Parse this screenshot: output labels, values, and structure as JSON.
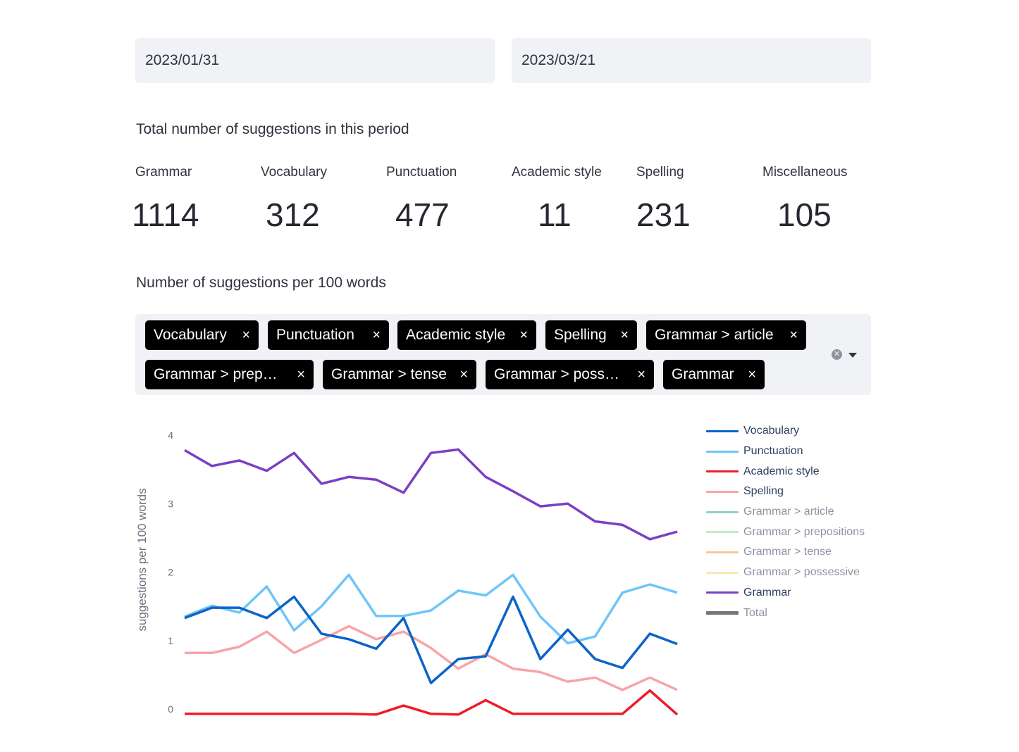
{
  "date_range": {
    "start": "2023/01/31",
    "end": "2023/03/21"
  },
  "totals": {
    "title": "Total number of suggestions in this period",
    "metrics": [
      {
        "label": "Grammar",
        "value": "1114"
      },
      {
        "label": "Vocabulary",
        "value": "312"
      },
      {
        "label": "Punctuation",
        "value": "477"
      },
      {
        "label": "Academic style",
        "value": "11"
      },
      {
        "label": "Spelling",
        "value": "231"
      },
      {
        "label": "Miscellaneous",
        "value": "105"
      }
    ]
  },
  "per100": {
    "title": "Number of suggestions per 100 words",
    "selected_tags": [
      "Vocabulary",
      "Punctuation",
      "Academic style",
      "Spelling",
      "Grammar > article",
      "Grammar > prep…",
      "Grammar > tense",
      "Grammar > poss…",
      "Grammar"
    ],
    "remove_glyph": "×"
  },
  "chart_data": {
    "type": "line",
    "title": "",
    "xlabel": "",
    "ylabel": "suggestions per 100 words",
    "ylim": [
      -0.08,
      4.15
    ],
    "yticks": [
      "0",
      "1",
      "2",
      "3",
      "4"
    ],
    "grid": false,
    "legend_position": "right",
    "x": [
      0,
      1,
      2,
      3,
      4,
      5,
      6,
      7,
      8,
      9,
      10,
      11,
      12,
      13,
      14,
      15,
      16,
      17,
      18
    ],
    "series": [
      {
        "name": "Grammar",
        "color": "#7b3fc4",
        "values": [
          3.78,
          3.55,
          3.63,
          3.48,
          3.74,
          3.29,
          3.39,
          3.35,
          3.16,
          3.74,
          3.79,
          3.39,
          3.18,
          2.96,
          3.0,
          2.74,
          2.69,
          2.48,
          2.59
        ]
      },
      {
        "name": "Punctuation",
        "color": "#6ec6f8",
        "values": [
          1.35,
          1.51,
          1.41,
          1.79,
          1.15,
          1.5,
          1.96,
          1.36,
          1.36,
          1.44,
          1.73,
          1.66,
          1.96,
          1.35,
          0.96,
          1.06,
          1.7,
          1.82,
          1.7
        ]
      },
      {
        "name": "Spelling",
        "color": "#f7a4a8",
        "values": [
          0.82,
          0.82,
          0.91,
          1.13,
          0.82,
          1.01,
          1.21,
          1.02,
          1.13,
          0.89,
          0.59,
          0.8,
          0.59,
          0.54,
          0.4,
          0.46,
          0.28,
          0.46,
          0.28
        ]
      },
      {
        "name": "Vocabulary",
        "color": "#0b64c8",
        "values": [
          1.33,
          1.48,
          1.48,
          1.33,
          1.64,
          1.1,
          1.02,
          0.88,
          1.33,
          0.38,
          0.73,
          0.77,
          1.64,
          0.73,
          1.16,
          0.73,
          0.6,
          1.1,
          0.95
        ]
      },
      {
        "name": "Academic style",
        "color": "#ef1c28",
        "values": [
          -0.07,
          -0.07,
          -0.07,
          -0.07,
          -0.07,
          -0.07,
          -0.07,
          -0.08,
          0.05,
          -0.07,
          -0.08,
          0.13,
          -0.07,
          -0.07,
          -0.07,
          -0.07,
          -0.07,
          0.27,
          -0.08
        ]
      }
    ],
    "legend": [
      {
        "name": "Vocabulary",
        "color": "#0b64c8",
        "active": true
      },
      {
        "name": "Punctuation",
        "color": "#6ec6f8",
        "active": true
      },
      {
        "name": "Academic style",
        "color": "#ef1c28",
        "active": true
      },
      {
        "name": "Spelling",
        "color": "#f7a4a8",
        "active": true
      },
      {
        "name": "Grammar > article",
        "color": "#8fd0cf",
        "active": false
      },
      {
        "name": "Grammar > prepositions",
        "color": "#bfeec8",
        "active": false
      },
      {
        "name": "Grammar > tense",
        "color": "#f9c898",
        "active": false
      },
      {
        "name": "Grammar > possessive",
        "color": "#fbe8b0",
        "active": false
      },
      {
        "name": "Grammar",
        "color": "#7b3fc4",
        "active": true
      },
      {
        "name": "Total",
        "color": "#767676",
        "active": false
      }
    ]
  }
}
